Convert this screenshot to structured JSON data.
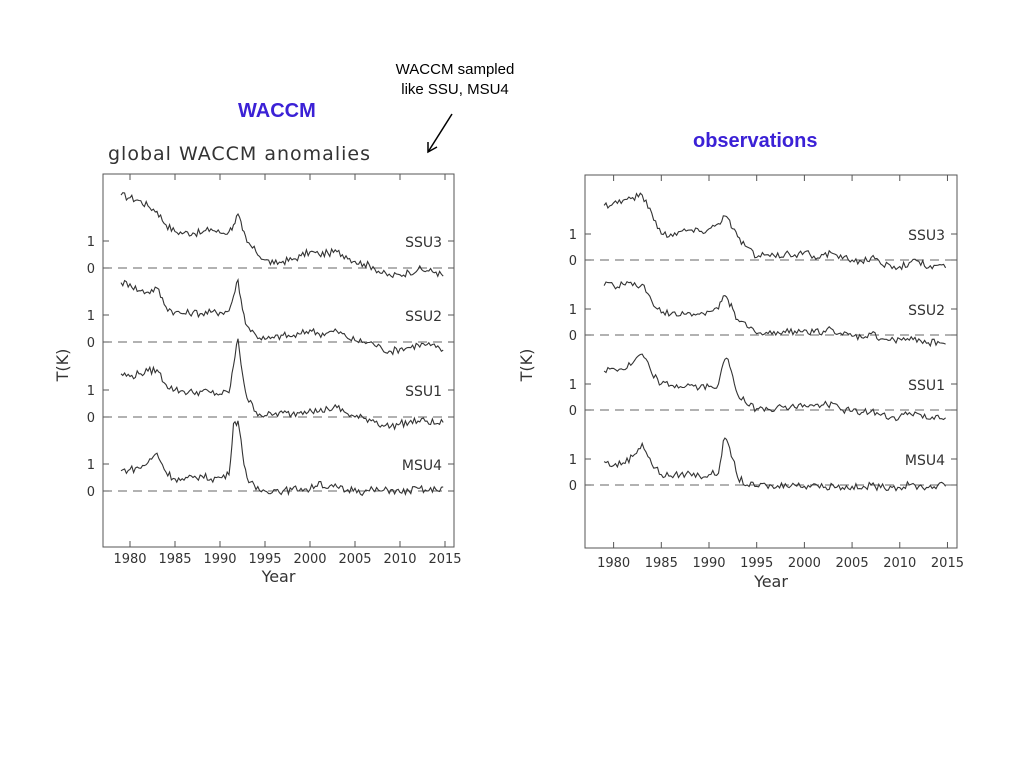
{
  "slide": {
    "waccm_label": "WACCM",
    "observations_label": "observations",
    "annotation_line1": "WACCM sampled",
    "annotation_line2": "like SSU, MSU4",
    "accent_color": "#3b21d6",
    "arrow_icon": "arrow-icon"
  },
  "chart_data": [
    {
      "type": "line",
      "title": "global  WACCM  anomalies",
      "xlabel": "Year",
      "ylabel": "T(K)",
      "xlim": [
        1977,
        2016
      ],
      "xticks": [
        "1980",
        "1985",
        "1990",
        "1995",
        "2000",
        "2005",
        "2010",
        "2015"
      ],
      "grid": false,
      "baseline": "dashed zero line per series",
      "series": [
        {
          "name": "SSU3",
          "yticks": [
            "1",
            "0"
          ],
          "x": [
            1979,
            1980,
            1981,
            1982,
            1983,
            1984,
            1985,
            1986,
            1987,
            1988,
            1989,
            1990,
            1991,
            1991.5,
            1992,
            1992.5,
            1993,
            1994,
            1995,
            1996,
            1997,
            1998,
            1999,
            2000,
            2001,
            2002,
            2003,
            2004,
            2005,
            2006,
            2007,
            2008,
            2009,
            2010,
            2011,
            2012,
            2013,
            2014,
            2014.8
          ],
          "values": [
            2.7,
            2.6,
            2.5,
            2.3,
            2.1,
            1.6,
            1.35,
            1.3,
            1.3,
            1.3,
            1.45,
            1.3,
            1.35,
            1.6,
            2.0,
            1.4,
            0.95,
            0.6,
            0.3,
            0.15,
            0.25,
            0.3,
            0.45,
            0.6,
            0.5,
            0.55,
            0.6,
            0.45,
            0.25,
            0.15,
            0.05,
            -0.2,
            -0.3,
            -0.25,
            -0.15,
            -0.05,
            -0.1,
            -0.15,
            -0.3
          ]
        },
        {
          "name": "SSU2",
          "yticks": [
            "1",
            "0"
          ],
          "x": [
            1979,
            1980,
            1981,
            1982,
            1983,
            1984,
            1985,
            1986,
            1987,
            1988,
            1989,
            1990,
            1991,
            1991.5,
            1992,
            1992.5,
            1993,
            1994,
            1995,
            1996,
            1997,
            1998,
            1999,
            2000,
            2001,
            2002,
            2003,
            2004,
            2005,
            2006,
            2007,
            2008,
            2009,
            2010,
            2011,
            2012,
            2013,
            2014,
            2014.8
          ],
          "values": [
            2.2,
            2.15,
            1.9,
            1.85,
            2.0,
            1.3,
            1.1,
            1.05,
            1.1,
            1.05,
            1.1,
            1.1,
            1.15,
            1.7,
            2.3,
            1.2,
            0.6,
            0.25,
            0.1,
            0.15,
            0.25,
            0.2,
            0.3,
            0.45,
            0.3,
            0.35,
            0.4,
            0.2,
            0.05,
            0.0,
            -0.05,
            -0.25,
            -0.35,
            -0.25,
            -0.2,
            -0.1,
            -0.1,
            -0.2,
            -0.3
          ]
        },
        {
          "name": "SSU1",
          "yticks": [
            "1",
            "0"
          ],
          "x": [
            1979,
            1980,
            1981,
            1982,
            1983,
            1984,
            1985,
            1986,
            1987,
            1988,
            1989,
            1990,
            1991,
            1991.5,
            1992,
            1992.5,
            1993,
            1994,
            1995,
            1996,
            1997,
            1998,
            1999,
            2000,
            2001,
            2002,
            2003,
            2004,
            2005,
            2006,
            2007,
            2008,
            2009,
            2010,
            2011,
            2012,
            2013,
            2014,
            2014.8
          ],
          "values": [
            1.6,
            1.5,
            1.6,
            1.7,
            1.75,
            1.2,
            1.0,
            0.95,
            0.9,
            0.95,
            0.9,
            0.85,
            0.9,
            1.9,
            2.9,
            1.6,
            0.7,
            0.2,
            0.05,
            0.1,
            0.15,
            0.1,
            0.2,
            0.3,
            0.2,
            0.3,
            0.35,
            0.15,
            0.0,
            -0.05,
            -0.1,
            -0.3,
            -0.35,
            -0.25,
            -0.2,
            -0.15,
            -0.15,
            -0.25,
            -0.2
          ]
        },
        {
          "name": "MSU4",
          "yticks": [
            "1",
            "0"
          ],
          "x": [
            1979,
            1980,
            1981,
            1982,
            1983,
            1984,
            1985,
            1986,
            1987,
            1988,
            1989,
            1990,
            1991,
            1991.5,
            1992,
            1992.5,
            1993,
            1994,
            1995,
            1996,
            1997,
            1998,
            1999,
            2000,
            2001,
            2002,
            2003,
            2004,
            2005,
            2006,
            2007,
            2008,
            2009,
            2010,
            2011,
            2012,
            2013,
            2014,
            2014.8
          ],
          "values": [
            0.75,
            0.8,
            0.85,
            1.05,
            1.4,
            0.7,
            0.45,
            0.4,
            0.5,
            0.55,
            0.45,
            0.5,
            0.6,
            2.5,
            2.6,
            1.4,
            0.5,
            0.05,
            0.0,
            0.05,
            0.0,
            0.05,
            0.1,
            0.05,
            0.35,
            0.1,
            0.15,
            0.0,
            0.1,
            -0.05,
            0.05,
            0.0,
            0.05,
            -0.05,
            0.0,
            0.1,
            0.0,
            0.05,
            0.15
          ]
        }
      ]
    },
    {
      "type": "line",
      "title": "",
      "xlabel": "Year",
      "ylabel": "T(K)",
      "xlim": [
        1977,
        2016
      ],
      "xticks": [
        "1980",
        "1985",
        "1990",
        "1995",
        "2000",
        "2005",
        "2010",
        "2015"
      ],
      "grid": false,
      "baseline": "dashed zero line per series",
      "series": [
        {
          "name": "SSU3",
          "yticks": [
            "1",
            "0"
          ],
          "x": [
            1979,
            1980,
            1981,
            1982,
            1983,
            1984,
            1985,
            1986,
            1987,
            1988,
            1989,
            1990,
            1991,
            1991.5,
            1992,
            1992.5,
            1993,
            1994,
            1995,
            1996,
            1997,
            1998,
            1999,
            2000,
            2001,
            2002,
            2003,
            2004,
            2005,
            2006,
            2007,
            2008,
            2009,
            2010,
            2011,
            2012,
            2013,
            2014,
            2014.8
          ],
          "values": [
            2.1,
            2.2,
            2.3,
            2.4,
            2.5,
            1.8,
            1.0,
            1.0,
            1.1,
            1.15,
            1.1,
            1.2,
            1.4,
            1.7,
            1.6,
            1.2,
            0.9,
            0.5,
            0.1,
            0.2,
            0.1,
            0.25,
            0.2,
            0.3,
            0.15,
            0.2,
            0.25,
            0.05,
            0.0,
            -0.05,
            0.1,
            -0.15,
            -0.2,
            -0.25,
            -0.1,
            -0.05,
            -0.3,
            -0.2,
            -0.3
          ]
        },
        {
          "name": "SSU2",
          "yticks": [
            "1",
            "0"
          ],
          "x": [
            1979,
            1980,
            1981,
            1982,
            1983,
            1984,
            1985,
            1986,
            1987,
            1988,
            1989,
            1990,
            1991,
            1991.5,
            1992,
            1992.5,
            1993,
            1994,
            1995,
            1996,
            1997,
            1998,
            1999,
            2000,
            2001,
            2002,
            2003,
            2004,
            2005,
            2006,
            2007,
            2008,
            2009,
            2010,
            2011,
            2012,
            2013,
            2014,
            2014.8
          ],
          "values": [
            1.9,
            1.9,
            1.95,
            1.9,
            1.95,
            1.3,
            0.85,
            0.8,
            0.75,
            0.85,
            0.8,
            0.9,
            1.0,
            1.5,
            1.35,
            1.0,
            0.6,
            0.3,
            0.05,
            0.1,
            0.0,
            0.1,
            0.15,
            0.2,
            0.1,
            0.15,
            0.2,
            0.0,
            -0.05,
            -0.1,
            0.05,
            -0.15,
            -0.2,
            -0.15,
            -0.2,
            -0.15,
            -0.3,
            -0.25,
            -0.35
          ]
        },
        {
          "name": "SSU1",
          "yticks": [
            "1",
            "0"
          ],
          "x": [
            1979,
            1980,
            1981,
            1982,
            1983,
            1984,
            1985,
            1986,
            1987,
            1988,
            1989,
            1990,
            1991,
            1991.5,
            1992,
            1992.5,
            1993,
            1994,
            1995,
            1996,
            1997,
            1998,
            1999,
            2000,
            2001,
            2002,
            2003,
            2004,
            2005,
            2006,
            2007,
            2008,
            2009,
            2010,
            2011,
            2012,
            2013,
            2014,
            2014.8
          ],
          "values": [
            1.5,
            1.6,
            1.55,
            1.8,
            2.15,
            1.4,
            1.0,
            0.95,
            0.9,
            0.95,
            0.85,
            0.9,
            1.0,
            1.8,
            1.95,
            1.3,
            0.6,
            0.2,
            0.05,
            0.1,
            0.05,
            0.15,
            0.1,
            0.2,
            0.15,
            0.2,
            0.25,
            0.0,
            -0.05,
            -0.1,
            -0.05,
            -0.2,
            -0.3,
            -0.25,
            -0.1,
            -0.15,
            -0.35,
            -0.2,
            -0.3
          ]
        },
        {
          "name": "MSU4",
          "yticks": [
            "1",
            "0"
          ],
          "x": [
            1979,
            1980,
            1981,
            1982,
            1983,
            1984,
            1985,
            1986,
            1987,
            1988,
            1989,
            1990,
            1991,
            1991.5,
            1992,
            1992.5,
            1993,
            1994,
            1995,
            1996,
            1997,
            1998,
            1999,
            2000,
            2001,
            2002,
            2003,
            2004,
            2005,
            2006,
            2007,
            2008,
            2009,
            2010,
            2011,
            2012,
            2013,
            2014,
            2014.8
          ],
          "values": [
            0.9,
            0.75,
            0.85,
            1.1,
            1.6,
            0.8,
            0.4,
            0.35,
            0.4,
            0.45,
            0.35,
            0.4,
            0.45,
            1.7,
            1.6,
            1.0,
            0.3,
            0.0,
            -0.05,
            0.0,
            -0.1,
            0.05,
            0.0,
            -0.05,
            0.05,
            -0.1,
            0.0,
            -0.1,
            -0.05,
            -0.15,
            0.0,
            -0.1,
            -0.05,
            -0.1,
            0.0,
            -0.05,
            -0.1,
            0.0,
            -0.05
          ]
        }
      ]
    }
  ]
}
